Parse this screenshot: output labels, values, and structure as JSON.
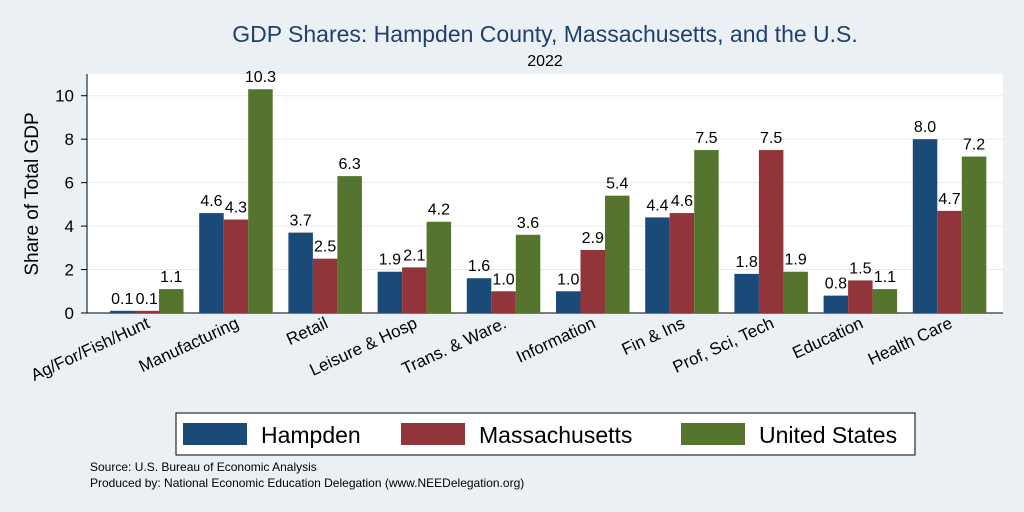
{
  "chart_data": {
    "type": "bar",
    "title": "GDP Shares: Hampden County, Massachusetts, and the U.S.",
    "subtitle": "2022",
    "xlabel": "",
    "ylabel": "Share of Total GDP",
    "ylim": [
      0,
      11
    ],
    "yticks": [
      0,
      2,
      4,
      6,
      8,
      10
    ],
    "grid": true,
    "legend_position": "bottom",
    "categories": [
      "Ag/For/Fish/Hunt",
      "Manufacturing",
      "Retail",
      "Leisure & Hosp",
      "Trans. & Ware.",
      "Information",
      "Fin & Ins",
      "Prof, Sci, Tech",
      "Education",
      "Health Care"
    ],
    "series": [
      {
        "name": "Hampden",
        "color": "#1a4a78",
        "values": [
          0.1,
          4.6,
          3.7,
          1.9,
          1.6,
          1.0,
          4.4,
          1.8,
          0.8,
          8.0
        ],
        "labels": [
          "0.1",
          "4.6",
          "3.7",
          "1.9",
          "1.6",
          "1.0",
          "4.4",
          "1.8",
          "0.8",
          "8.0"
        ]
      },
      {
        "name": "Massachusetts",
        "color": "#91353b",
        "values": [
          0.1,
          4.3,
          2.5,
          2.1,
          1.0,
          2.9,
          4.6,
          7.5,
          1.5,
          4.7
        ],
        "labels": [
          "0.1",
          "4.3",
          "2.5",
          "2.1",
          "1.0",
          "2.9",
          "4.6",
          "7.5",
          "1.5",
          "4.7"
        ]
      },
      {
        "name": "United States",
        "color": "#55752f",
        "values": [
          1.1,
          10.3,
          6.3,
          4.2,
          3.6,
          5.4,
          7.5,
          1.9,
          1.1,
          7.2
        ],
        "labels": [
          "1.1",
          "10.3",
          "6.3",
          "4.2",
          "3.6",
          "5.4",
          "7.5",
          "1.9",
          "1.1",
          "7.2"
        ]
      }
    ]
  },
  "footer": {
    "source": "Source: U.S. Bureau of Economic Analysis",
    "produced_by": "Produced by: National Economic Education Delegation (www.NEEDelegation.org)"
  },
  "colors": {
    "background": "#ebf0f4",
    "plot_background": "#ffffff",
    "title": "#1f3f6e"
  }
}
